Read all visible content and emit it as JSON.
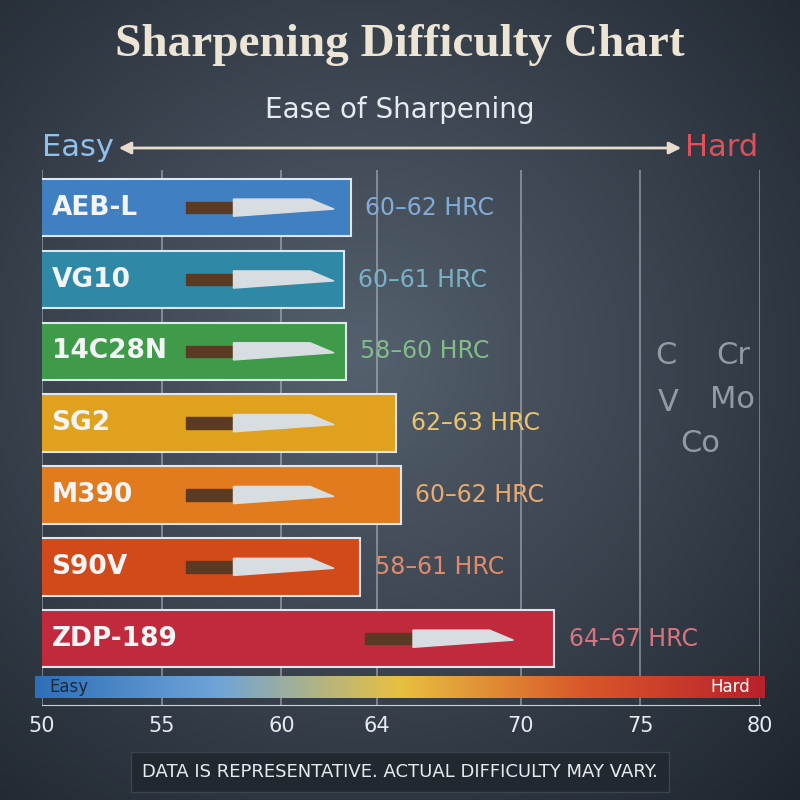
{
  "chart_data": {
    "type": "bar",
    "orientation": "horizontal",
    "title": "Sharpening Difficulty Chart",
    "subtitle": "Ease of Sharpening",
    "scale_labels": [
      "Easy",
      "Hard"
    ],
    "categories": [
      "AEB-L",
      "VG10",
      "14C28N",
      "SG2",
      "M390",
      "S90V",
      "ZDP-189"
    ],
    "values": [
      62.9,
      62.6,
      62.7,
      64.8,
      65.0,
      63.3,
      71.4
    ],
    "hardness": [
      "60–62 HRC",
      "60–61 HRC",
      "58–60 HRC",
      "62–63 HRC",
      "60–62 HRC",
      "58–61 HRC",
      "64–67 HRC"
    ],
    "colors": [
      "#3f7fc2",
      "#2f88a6",
      "#3f9a4a",
      "#e0a21e",
      "#e27a1e",
      "#d2491a",
      "#c02a3c"
    ],
    "xlim": [
      50,
      80
    ],
    "xticks": [
      50,
      55,
      60,
      64,
      70,
      75,
      80
    ],
    "grid": true,
    "tick_labels": "x",
    "elements": [
      "C",
      "Cr",
      "V",
      "Mo",
      "Co"
    ],
    "footnote": "DATA IS REPRESENTATIVE. ACTUAL DIFFICULTY MAY VARY."
  }
}
